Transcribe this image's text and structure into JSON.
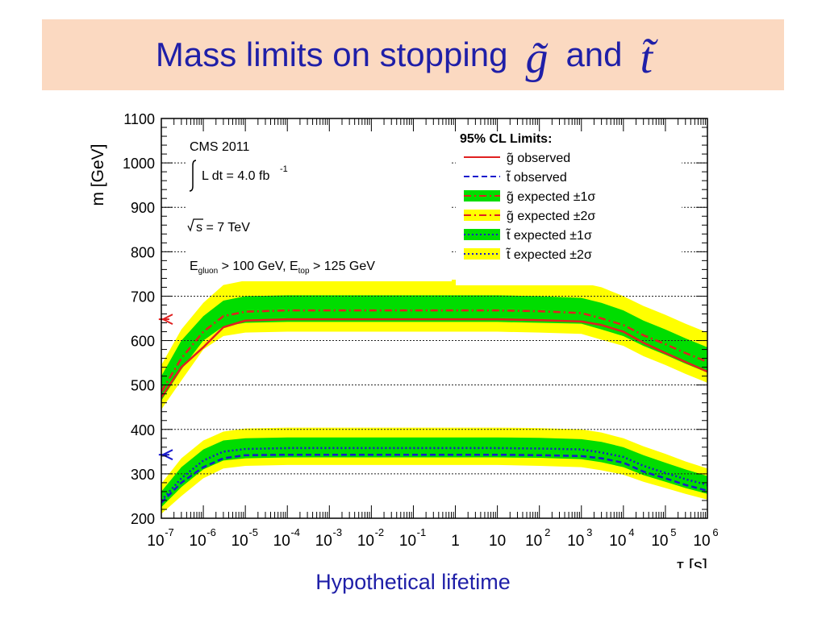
{
  "title": {
    "text_before": "Mass limits on stopping",
    "gluino_symbol": "g̃",
    "text_and": "and",
    "stop_symbol": "t̃"
  },
  "caption": "Hypothetical lifetime",
  "colors": {
    "banner": "#fbd9c1",
    "title_text": "#1f1fa8",
    "band_2sigma": "#ffff00",
    "band_1sigma": "#00dd00",
    "gluino_observed": "#e02020",
    "stop_observed": "#1a1acc",
    "gluino_expected": "#e02020",
    "stop_expected": "#1a1acc",
    "arrow_gluino": "#e02020",
    "arrow_stop": "#1a1acc"
  },
  "chart_data": {
    "type": "line",
    "x_scale": "log",
    "xlim": [
      1e-07,
      1000000.0
    ],
    "ylim": [
      200,
      1100
    ],
    "ylabel": "m [GeV]",
    "xlabel": "τ [s]",
    "y_ticks": [
      "200",
      "300",
      "400",
      "500",
      "600",
      "700",
      "800",
      "900",
      "1000",
      "1100"
    ],
    "x_ticks": [
      {
        "base": "10",
        "exp": "-7"
      },
      {
        "base": "10",
        "exp": "-6"
      },
      {
        "base": "10",
        "exp": "-5"
      },
      {
        "base": "10",
        "exp": "-4"
      },
      {
        "base": "10",
        "exp": "-3"
      },
      {
        "base": "10",
        "exp": "-2"
      },
      {
        "base": "10",
        "exp": "-1"
      },
      {
        "base": "1",
        "exp": ""
      },
      {
        "base": "10",
        "exp": ""
      },
      {
        "base": "10",
        "exp": "2"
      },
      {
        "base": "10",
        "exp": "3"
      },
      {
        "base": "10",
        "exp": "4"
      },
      {
        "base": "10",
        "exp": "5"
      },
      {
        "base": "10",
        "exp": "6"
      }
    ],
    "annotations": {
      "experiment": "CMS 2011",
      "lumi_text": "L dt = 4.0 fb",
      "lumi_exp": "-1",
      "sqrt_s": "s = 7 TeV",
      "energy_cut": "E",
      "energy_cut_sub1": "gluon",
      "energy_cut_mid": " > 100 GeV, E",
      "energy_cut_sub2": "top",
      "energy_cut_end": " > 125 GeV"
    },
    "legend": {
      "title": "95% CL Limits:",
      "position": "top-right",
      "entries": [
        {
          "label": "g̃ observed",
          "style": "solid",
          "color": "#e02020"
        },
        {
          "label": "t̃ observed",
          "style": "dashed",
          "color": "#1a1acc"
        },
        {
          "label": "g̃ expected ±1σ",
          "style": "dashdot-band1",
          "color": "#e02020"
        },
        {
          "label": "g̃ expected ±2σ",
          "style": "dashdot-band2",
          "color": "#e02020"
        },
        {
          "label": "t̃ expected ±1σ",
          "style": "dotted-band1",
          "color": "#1a1acc"
        },
        {
          "label": "t̃ expected ±2σ",
          "style": "dotted-band2",
          "color": "#1a1acc"
        }
      ]
    },
    "reference_lines": [
      1000,
      900,
      800,
      700,
      600,
      500,
      400,
      300
    ],
    "x": [
      1e-07,
      3e-07,
      1e-06,
      3e-06,
      1e-05,
      0.0001,
      0.001,
      0.01,
      0.1,
      1,
      10,
      100,
      1000,
      3000,
      10000.0,
      30000.0,
      100000.0,
      300000.0,
      1000000.0
    ],
    "series": [
      {
        "name": "g̃ observed",
        "values": [
          472,
          540,
          585,
          630,
          645,
          648,
          648,
          648,
          648,
          648,
          648,
          646,
          643,
          635,
          620,
          595,
          572,
          552,
          530
        ]
      },
      {
        "name": "g̃ expected",
        "values": [
          485,
          560,
          620,
          655,
          665,
          668,
          668,
          668,
          668,
          668,
          668,
          666,
          662,
          650,
          635,
          612,
          592,
          572,
          552
        ]
      },
      {
        "name": "g̃ expected ±1σ band",
        "lower": [
          465,
          535,
          600,
          632,
          640,
          642,
          642,
          642,
          642,
          642,
          642,
          640,
          638,
          625,
          610,
          588,
          568,
          548,
          528
        ],
        "upper": [
          520,
          600,
          655,
          690,
          700,
          702,
          702,
          702,
          702,
          702,
          702,
          700,
          696,
          685,
          668,
          645,
          625,
          605,
          585
        ]
      },
      {
        "name": "g̃ expected ±2σ band",
        "lower": [
          445,
          510,
          580,
          610,
          618,
          620,
          620,
          620,
          620,
          620,
          620,
          618,
          615,
          602,
          588,
          565,
          545,
          525,
          505
        ],
        "upper": [
          545,
          625,
          685,
          725,
          735,
          737,
          737,
          737,
          737,
          737,
          737,
          735,
          730,
          720,
          700,
          678,
          658,
          638,
          618
        ]
      },
      {
        "name": "t̃ observed",
        "values": [
          235,
          280,
          315,
          335,
          342,
          343,
          343,
          343,
          343,
          343,
          343,
          342,
          340,
          335,
          325,
          305,
          290,
          275,
          262
        ]
      },
      {
        "name": "t̃ expected",
        "values": [
          240,
          290,
          330,
          350,
          356,
          358,
          358,
          358,
          358,
          358,
          358,
          357,
          355,
          348,
          338,
          318,
          302,
          288,
          275
        ]
      },
      {
        "name": "t̃ expected ±1σ band",
        "lower": [
          225,
          270,
          310,
          330,
          335,
          337,
          337,
          337,
          337,
          337,
          337,
          336,
          333,
          326,
          315,
          297,
          282,
          268,
          255
        ],
        "upper": [
          260,
          315,
          355,
          375,
          380,
          382,
          382,
          382,
          382,
          382,
          382,
          381,
          378,
          372,
          360,
          342,
          325,
          310,
          295
        ]
      },
      {
        "name": "t̃ expected ±2σ band",
        "lower": [
          210,
          250,
          290,
          312,
          318,
          320,
          320,
          320,
          320,
          320,
          320,
          318,
          315,
          308,
          298,
          282,
          268,
          255,
          242
        ],
        "upper": [
          278,
          335,
          375,
          395,
          402,
          404,
          404,
          404,
          404,
          404,
          404,
          403,
          400,
          393,
          380,
          362,
          345,
          328,
          312
        ]
      }
    ],
    "arrows": [
      {
        "name": "g̃ limit arrow",
        "y": 648,
        "x_from": 1e-07,
        "x_to": 3e-07
      },
      {
        "name": "t̃ limit arrow",
        "y": 343,
        "x_from": 1e-07,
        "x_to": 3e-07
      }
    ]
  }
}
